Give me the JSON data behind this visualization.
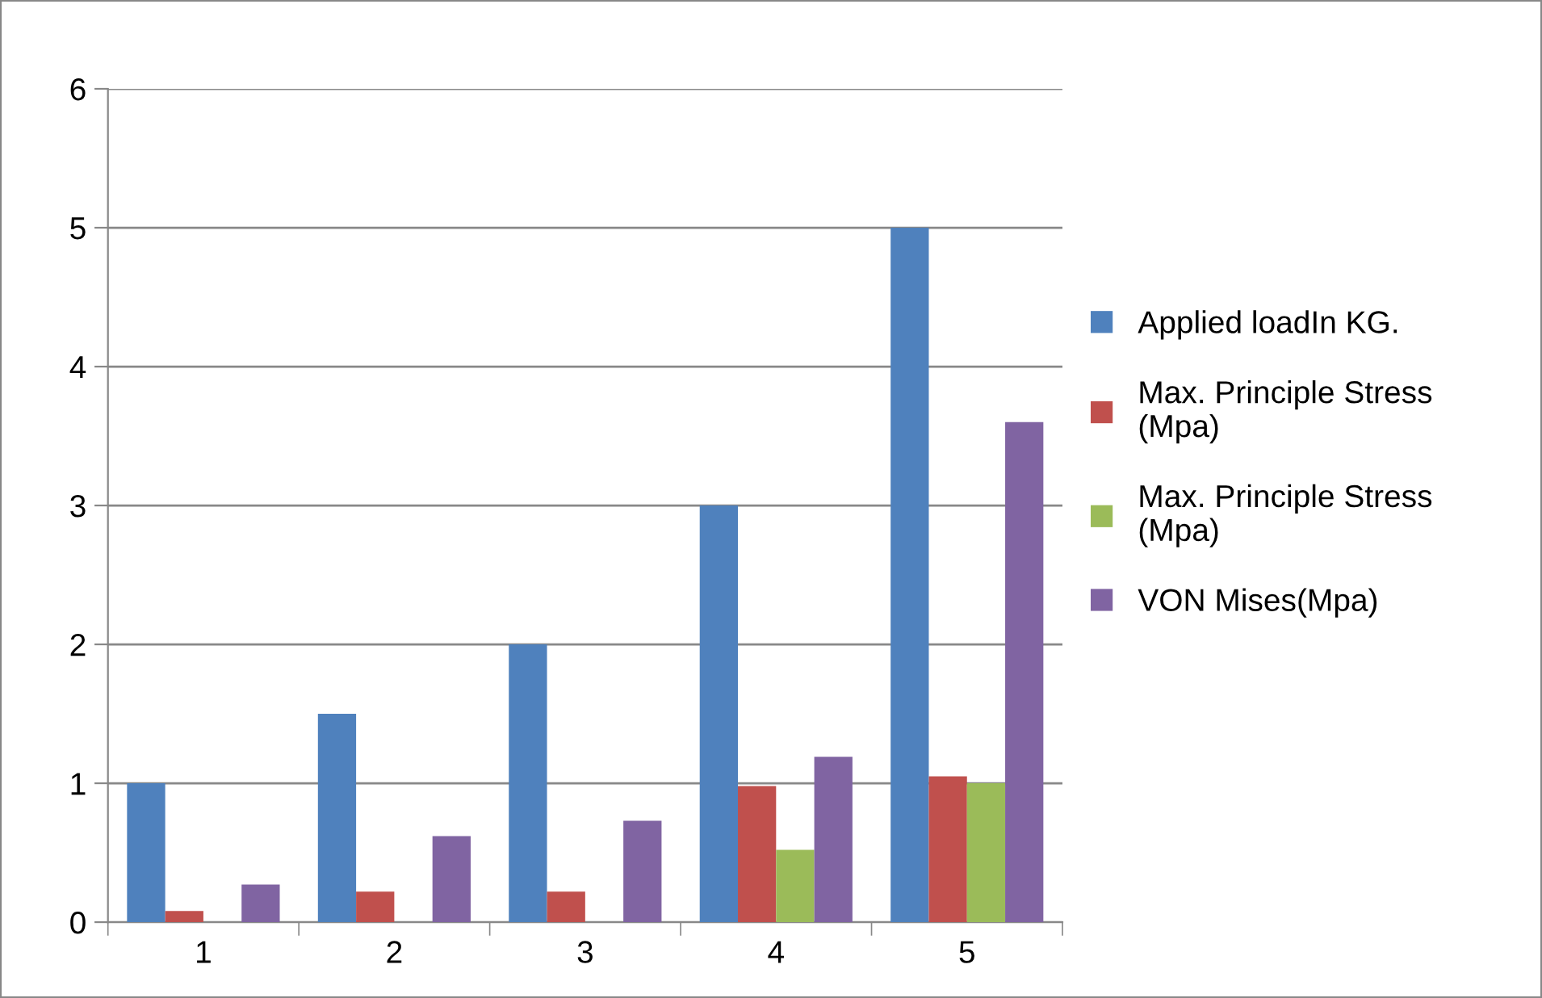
{
  "chart_data": {
    "type": "bar",
    "categories": [
      "1",
      "2",
      "3",
      "4",
      "5"
    ],
    "series": [
      {
        "name": "Applied loadIn KG.",
        "color": "#4f81bd",
        "values": [
          1,
          1.5,
          2,
          3,
          5
        ]
      },
      {
        "name": "Max. Principle Stress (Mpa)",
        "color": "#c0504d",
        "values": [
          0.08,
          0.22,
          0.22,
          0.98,
          1.05
        ]
      },
      {
        "name": "Max. Principle Stress (Mpa)",
        "color": "#9bbb59",
        "values": [
          0,
          0,
          0,
          0.52,
          1.0
        ]
      },
      {
        "name": "VON Mises(Mpa)",
        "color": "#8064a2",
        "values": [
          0.27,
          0.62,
          0.73,
          1.19,
          3.6
        ]
      }
    ],
    "ylim": [
      0,
      6
    ],
    "yticks": [
      0,
      1,
      2,
      3,
      4,
      5,
      6
    ],
    "grid": "y",
    "legend": "right"
  }
}
